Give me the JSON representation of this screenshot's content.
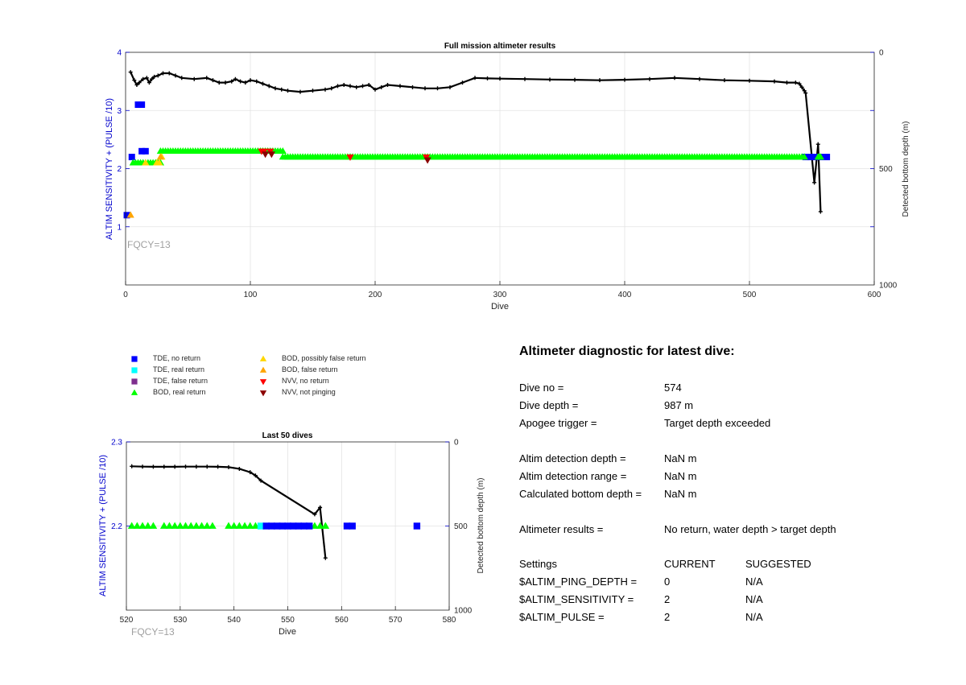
{
  "colors": {
    "axis_left": "#0000cc",
    "axis_right": "#262626",
    "grid": "#e3e3e3",
    "tde_no_return": "#0000ff",
    "tde_real_return": "#00ffff",
    "tde_false_return": "#7e2f8e",
    "bod_real_return": "#00ff00",
    "bod_possibly_false": "#ffd700",
    "bod_false": "#ffa500",
    "nvv_no_return": "#ff0000",
    "nvv_not_pinging": "#8b0000",
    "depth_line": "#000000",
    "fqcy_text": "#a0a0a0"
  },
  "legend": [
    {
      "label": "TDE, no return",
      "symbol": "square-icon",
      "color_key": "tde_no_return"
    },
    {
      "label": "TDE, real return",
      "symbol": "square-icon",
      "color_key": "tde_real_return"
    },
    {
      "label": "TDE, false return",
      "symbol": "square-icon",
      "color_key": "tde_false_return"
    },
    {
      "label": "BOD, real return",
      "symbol": "triangle-up-icon",
      "color_key": "bod_real_return"
    },
    {
      "label": "BOD, possibly false return",
      "symbol": "triangle-up-icon",
      "color_key": "bod_possibly_false"
    },
    {
      "label": "BOD, false return",
      "symbol": "triangle-up-icon",
      "color_key": "bod_false"
    },
    {
      "label": "NVV, no return",
      "symbol": "triangle-down-icon",
      "color_key": "nvv_no_return"
    },
    {
      "label": "NVV, not pinging",
      "symbol": "triangle-down-icon",
      "color_key": "nvv_not_pinging"
    }
  ],
  "diagnostic": {
    "title": "Altimeter diagnostic for latest dive:",
    "rows": [
      {
        "label": "Dive no =",
        "value": "574"
      },
      {
        "label": "Dive depth =",
        "value": "987 m"
      },
      {
        "label": "Apogee trigger =",
        "value": "Target depth exceeded"
      },
      {
        "label": "Altim detection depth =",
        "value": "NaN m"
      },
      {
        "label": "Altim detection range =",
        "value": "NaN m"
      },
      {
        "label": "Calculated bottom depth =",
        "value": "NaN m"
      },
      {
        "label": "Altimeter results =",
        "value": "No return, water depth > target depth"
      }
    ],
    "settings_header": {
      "label": "Settings",
      "current": "CURRENT",
      "suggested": "SUGGESTED"
    },
    "settings": [
      {
        "name": "$ALTIM_PING_DEPTH =",
        "current": "0",
        "suggested": "N/A"
      },
      {
        "name": "$ALTIM_SENSITIVITY =",
        "current": "2",
        "suggested": "N/A"
      },
      {
        "name": "$ALTIM_PULSE =",
        "current": "2",
        "suggested": "N/A"
      }
    ]
  },
  "chart_data": [
    {
      "type": "scatter",
      "title": "Full mission altimeter results",
      "xlabel": "Dive",
      "ylabel": "ALTIM SENSITIVITY + (PULSE /10)",
      "y2label": "Detected bottom depth (m)",
      "xlim": [
        0,
        600
      ],
      "ylim": [
        0,
        4
      ],
      "y2lim": [
        1000,
        0
      ],
      "xticks": [
        0,
        100,
        200,
        300,
        400,
        500,
        600
      ],
      "yticks": [
        1,
        2,
        3,
        4
      ],
      "y2ticks": [
        0,
        500,
        1000
      ],
      "grid": true,
      "annotation": "FQCY=13",
      "series": [
        {
          "name": "TDE, no return",
          "marker": "square",
          "color_key": "tde_no_return",
          "points": [
            [
              1,
              1.2
            ],
            [
              5,
              2.2
            ],
            [
              10,
              3.1
            ],
            [
              13,
              3.1
            ],
            [
              13,
              2.3
            ],
            [
              16,
              2.3
            ],
            [
              545,
              2.2
            ],
            [
              549,
              2.2
            ],
            [
              553,
              2.2
            ],
            [
              557,
              2.2
            ],
            [
              562,
              2.2
            ]
          ]
        },
        {
          "name": "BOD, real return",
          "marker": "triangle-up",
          "color_key": "bod_real_return",
          "segments": [
            {
              "x_start": 6,
              "x_end": 28,
              "step": 2,
              "y": 2.1
            },
            {
              "x_start": 28,
              "x_end": 126,
              "step": 2,
              "y": 2.3
            },
            {
              "x_start": 126,
              "x_end": 545,
              "step": 2,
              "y": 2.2
            },
            {
              "x_start": 555,
              "x_end": 557,
              "step": 1,
              "y": 2.2
            }
          ]
        },
        {
          "name": "BOD, possibly false return",
          "marker": "triangle-up",
          "color_key": "bod_possibly_false",
          "points": [
            [
              16,
              2.1
            ],
            [
              25,
              2.1
            ],
            [
              27,
              2.1
            ],
            [
              29,
              2.2
            ]
          ]
        },
        {
          "name": "BOD, false return",
          "marker": "triangle-up",
          "color_key": "bod_false",
          "points": [
            [
              4,
              1.2
            ],
            [
              28,
              2.2
            ]
          ]
        },
        {
          "name": "NVV, no return",
          "marker": "triangle-down",
          "color_key": "nvv_no_return",
          "points": [
            [
              109,
              2.3
            ],
            [
              111,
              2.3
            ],
            [
              116,
              2.3
            ],
            [
              180,
              2.2
            ],
            [
              241,
              2.2
            ]
          ]
        },
        {
          "name": "NVV, not pinging",
          "marker": "triangle-down",
          "color_key": "nvv_not_pinging",
          "points": [
            [
              112,
              2.25
            ],
            [
              117,
              2.25
            ],
            [
              242,
              2.15
            ]
          ]
        }
      ],
      "depth_series": {
        "marker": "plus",
        "color_key": "depth_line",
        "points": [
          [
            4,
            85
          ],
          [
            7,
            120
          ],
          [
            9,
            140
          ],
          [
            11,
            130
          ],
          [
            14,
            115
          ],
          [
            17,
            110
          ],
          [
            19,
            130
          ],
          [
            21,
            115
          ],
          [
            23,
            105
          ],
          [
            26,
            100
          ],
          [
            30,
            90
          ],
          [
            35,
            90
          ],
          [
            40,
            100
          ],
          [
            45,
            110
          ],
          [
            55,
            115
          ],
          [
            65,
            110
          ],
          [
            70,
            120
          ],
          [
            75,
            130
          ],
          [
            80,
            130
          ],
          [
            85,
            125
          ],
          [
            88,
            115
          ],
          [
            92,
            125
          ],
          [
            96,
            130
          ],
          [
            100,
            120
          ],
          [
            105,
            125
          ],
          [
            110,
            135
          ],
          [
            115,
            145
          ],
          [
            120,
            155
          ],
          [
            125,
            160
          ],
          [
            130,
            165
          ],
          [
            140,
            170
          ],
          [
            150,
            165
          ],
          [
            160,
            160
          ],
          [
            165,
            155
          ],
          [
            170,
            145
          ],
          [
            175,
            140
          ],
          [
            180,
            145
          ],
          [
            185,
            150
          ],
          [
            190,
            145
          ],
          [
            195,
            140
          ],
          [
            200,
            160
          ],
          [
            205,
            150
          ],
          [
            210,
            140
          ],
          [
            220,
            145
          ],
          [
            230,
            150
          ],
          [
            240,
            155
          ],
          [
            250,
            155
          ],
          [
            260,
            150
          ],
          [
            270,
            130
          ],
          [
            280,
            110
          ],
          [
            290,
            112
          ],
          [
            300,
            113
          ],
          [
            320,
            115
          ],
          [
            340,
            117
          ],
          [
            360,
            118
          ],
          [
            380,
            120
          ],
          [
            400,
            118
          ],
          [
            420,
            115
          ],
          [
            440,
            110
          ],
          [
            460,
            115
          ],
          [
            480,
            120
          ],
          [
            500,
            122
          ],
          [
            520,
            125
          ],
          [
            530,
            130
          ],
          [
            537,
            130
          ],
          [
            540,
            135
          ],
          [
            542,
            150
          ],
          [
            544,
            165
          ],
          [
            545,
            175
          ],
          [
            552,
            560
          ],
          [
            555,
            395
          ],
          [
            557,
            685
          ]
        ]
      }
    },
    {
      "type": "scatter",
      "title": "Last 50 dives",
      "xlabel": "Dive",
      "ylabel": "ALTIM SENSITIVITY + (PULSE /10)",
      "y2label": "Detected bottom depth (m)",
      "xlim": [
        520,
        580
      ],
      "ylim": [
        2.1,
        2.3
      ],
      "y2lim": [
        1000,
        0
      ],
      "xticks": [
        520,
        530,
        540,
        550,
        560,
        570,
        580
      ],
      "yticks": [
        2.2,
        2.3
      ],
      "y2ticks": [
        0,
        500,
        1000
      ],
      "grid": true,
      "annotation": "FQCY=13",
      "series": [
        {
          "name": "BOD, real return",
          "marker": "triangle-up",
          "color_key": "bod_real_return",
          "points": [
            [
              521,
              2.2
            ],
            [
              522,
              2.2
            ],
            [
              523,
              2.2
            ],
            [
              524,
              2.2
            ],
            [
              525,
              2.2
            ],
            [
              527,
              2.2
            ],
            [
              528,
              2.2
            ],
            [
              529,
              2.2
            ],
            [
              530,
              2.2
            ],
            [
              531,
              2.2
            ],
            [
              532,
              2.2
            ],
            [
              533,
              2.2
            ],
            [
              534,
              2.2
            ],
            [
              535,
              2.2
            ],
            [
              536,
              2.2
            ],
            [
              539,
              2.2
            ],
            [
              540,
              2.2
            ],
            [
              541,
              2.2
            ],
            [
              542,
              2.2
            ],
            [
              543,
              2.2
            ],
            [
              544,
              2.2
            ],
            [
              555,
              2.2
            ],
            [
              556,
              2.2
            ],
            [
              557,
              2.2
            ]
          ]
        },
        {
          "name": "TDE, real return",
          "marker": "square",
          "color_key": "tde_real_return",
          "points": [
            [
              545,
              2.2
            ]
          ]
        },
        {
          "name": "TDE, no return",
          "marker": "square",
          "color_key": "tde_no_return",
          "points": [
            [
              546,
              2.2
            ],
            [
              547,
              2.2
            ],
            [
              548,
              2.2
            ],
            [
              549,
              2.2
            ],
            [
              550,
              2.2
            ],
            [
              551,
              2.2
            ],
            [
              552,
              2.2
            ],
            [
              553,
              2.2
            ],
            [
              554,
              2.2
            ],
            [
              561,
              2.2
            ],
            [
              562,
              2.2
            ],
            [
              574,
              2.2
            ]
          ]
        }
      ],
      "depth_series": {
        "marker": "plus",
        "color_key": "depth_line",
        "points": [
          [
            521,
            145
          ],
          [
            523,
            147
          ],
          [
            525,
            148
          ],
          [
            527,
            148
          ],
          [
            529,
            148
          ],
          [
            531,
            147
          ],
          [
            533,
            147
          ],
          [
            535,
            147
          ],
          [
            537,
            148
          ],
          [
            539,
            150
          ],
          [
            541,
            160
          ],
          [
            543,
            180
          ],
          [
            544,
            200
          ],
          [
            545,
            230
          ],
          [
            555,
            430
          ],
          [
            556,
            390
          ],
          [
            557,
            690
          ]
        ]
      }
    }
  ]
}
